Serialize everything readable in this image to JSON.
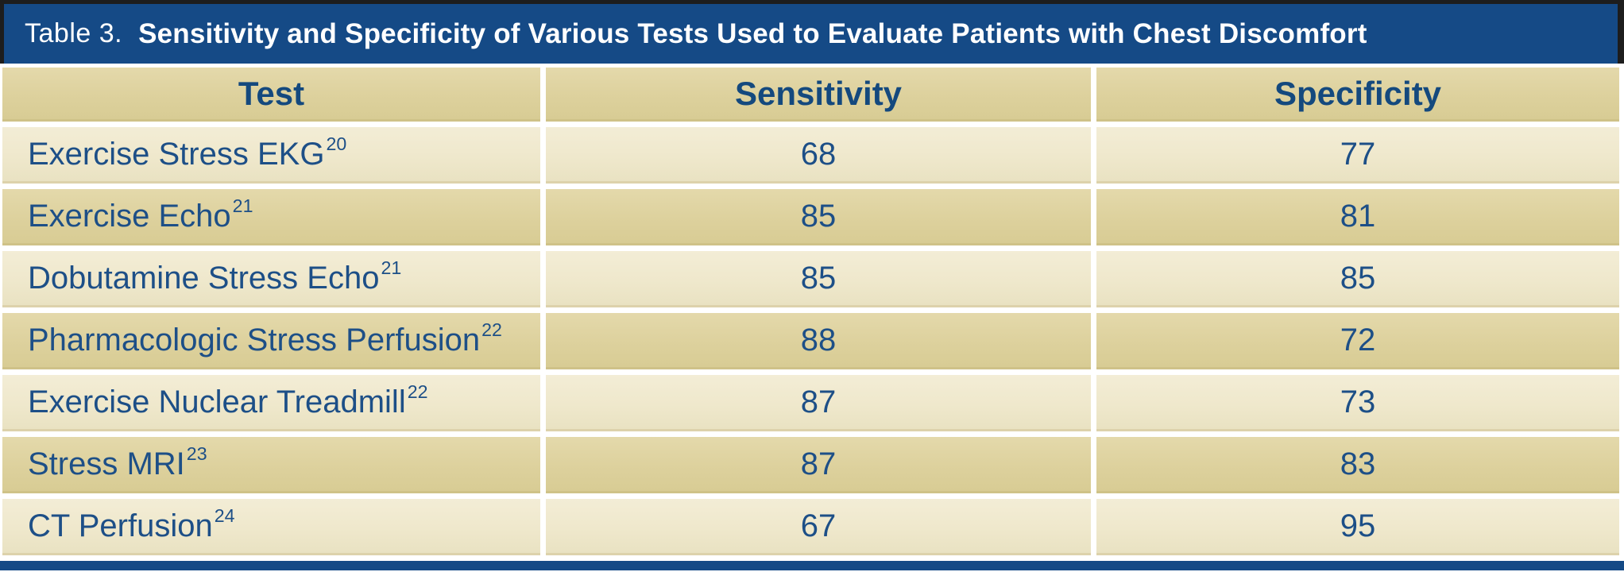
{
  "page": {
    "title_prefix": "Table 3.",
    "title_main": "Sensitivity and Specificity of Various Tests Used to Evaluate Patients with Chest Discomfort"
  },
  "colors": {
    "title_bar_blue": "#154A86",
    "bottom_bar_blue": "#154A86",
    "row_tan": "#DDD19D",
    "row_cream": "#F0E9CF",
    "text_navy": "#1D4F87",
    "frame_black": "#1D1D1D"
  },
  "table": {
    "columns": [
      "Test",
      "Sensitivity",
      "Specificity"
    ],
    "rows": [
      {
        "test": "Exercise Stress EKG",
        "ref": "20",
        "sensitivity": "68",
        "specificity": "77"
      },
      {
        "test": "Exercise Echo",
        "ref": "21",
        "sensitivity": "85",
        "specificity": "81"
      },
      {
        "test": "Dobutamine Stress Echo",
        "ref": "21",
        "sensitivity": "85",
        "specificity": "85"
      },
      {
        "test": "Pharmacologic Stress Perfusion",
        "ref": "22",
        "sensitivity": "88",
        "specificity": "72"
      },
      {
        "test": "Exercise Nuclear Treadmill",
        "ref": "22",
        "sensitivity": "87",
        "specificity": "73"
      },
      {
        "test": "Stress MRI",
        "ref": "23",
        "sensitivity": "87",
        "specificity": "83"
      },
      {
        "test": "CT Perfusion",
        "ref": "24",
        "sensitivity": "67",
        "specificity": "95"
      }
    ]
  }
}
